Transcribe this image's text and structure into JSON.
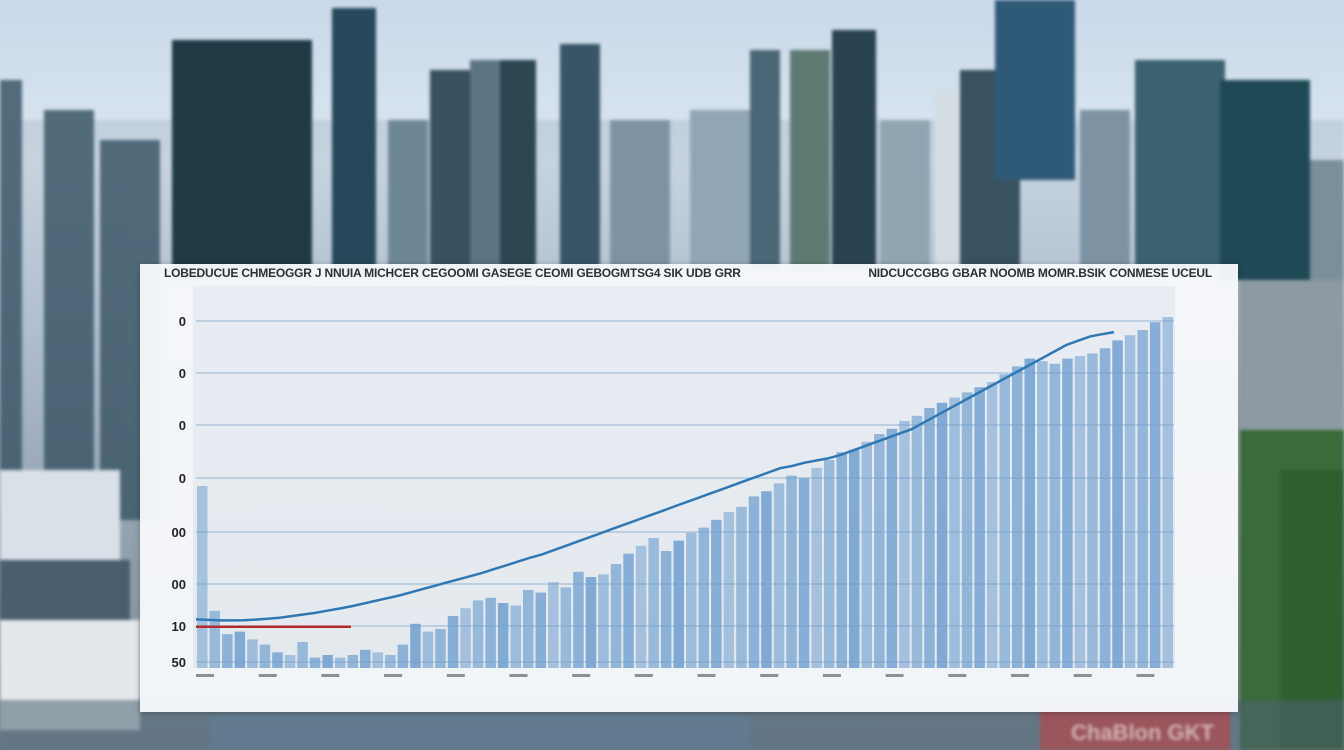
{
  "colors": {
    "bar": "#6f9fcf",
    "trend_line": "#2f78b4",
    "baseline_line": "#b22a2a",
    "grid": "#7fa6c8"
  },
  "chart_data": {
    "type": "bar",
    "title": "LOBEDUCUE CHMEOGGR J NNUIA MICHCER CEGOOMI GASEGE CEOMI GEBOGMTSG4 SIK UDB GRR",
    "subtitle_right": "NIDCUCCGBG GBAR NOOMB MOMR.BSIK CONMESE UCEUL",
    "y_tick_labels": [
      "0",
      "0",
      "0",
      "0",
      "00",
      "00",
      "10",
      "50"
    ],
    "grid": true,
    "legend": "none",
    "bar_values": [
      70,
      22,
      13,
      14,
      11,
      9,
      6,
      5,
      10,
      4,
      5,
      4,
      5,
      7,
      6,
      5,
      9,
      17,
      14,
      15,
      20,
      23,
      26,
      27,
      25,
      24,
      30,
      29,
      33,
      31,
      37,
      35,
      36,
      40,
      44,
      47,
      50,
      45,
      49,
      52,
      54,
      57,
      60,
      62,
      66,
      68,
      71,
      74,
      73,
      77,
      80,
      83,
      84,
      87,
      90,
      92,
      95,
      97,
      100,
      102,
      104,
      106,
      108,
      110,
      113,
      116,
      119,
      118,
      117,
      119,
      120,
      121,
      123,
      126,
      128,
      130,
      133,
      135
    ],
    "trend_line": [
      8,
      7.5,
      7,
      7,
      7.2,
      7.8,
      8.5,
      9.5,
      11,
      12.5,
      14,
      16,
      18,
      20,
      22.5,
      25,
      27.5,
      30,
      33,
      36,
      39,
      42,
      45,
      48,
      51,
      54.5,
      58,
      61.5,
      65,
      68,
      72,
      76,
      80,
      84,
      88,
      92,
      96,
      100,
      104,
      108,
      112,
      116,
      120,
      124,
      128,
      132,
      136,
      140,
      144,
      148,
      150,
      153,
      155,
      157,
      160,
      164,
      168,
      172,
      176,
      180,
      184,
      190,
      196,
      202,
      208,
      214,
      220,
      226,
      232,
      238,
      244,
      250,
      256,
      262,
      266,
      270,
      272,
      274
    ],
    "baseline_line": [
      6,
      6,
      6,
      6,
      6,
      6,
      6,
      6,
      6,
      6,
      6,
      6,
      6,
      6,
      6,
      6,
      6
    ]
  }
}
